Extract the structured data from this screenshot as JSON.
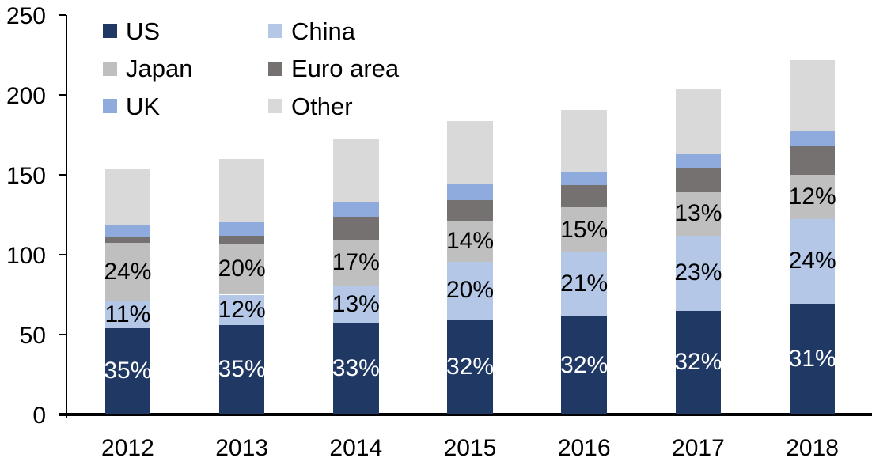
{
  "chart_data": {
    "type": "bar",
    "subtype": "stacked-column",
    "title": "",
    "xlabel": "",
    "ylabel": "",
    "categories": [
      "2012",
      "2013",
      "2014",
      "2015",
      "2016",
      "2017",
      "2018"
    ],
    "series": [
      {
        "name": "US",
        "color": "#1F3864",
        "values": [
          54,
          56,
          57.5,
          59.5,
          61.5,
          65,
          69.5
        ],
        "labels": [
          "35%",
          "35%",
          "33%",
          "32%",
          "32%",
          "32%",
          "31%"
        ],
        "label_color": "#FFFFFF"
      },
      {
        "name": "China",
        "color": "#B4C7E7",
        "values": [
          17,
          19,
          23,
          36,
          40,
          47,
          53
        ],
        "labels": [
          "11%",
          "12%",
          "13%",
          "20%",
          "21%",
          "23%",
          "24%"
        ],
        "label_color": "#000000"
      },
      {
        "name": "Japan",
        "color": "#BFBFBF",
        "values": [
          36.5,
          32,
          29,
          26,
          28,
          27,
          27.5
        ],
        "labels": [
          "24%",
          "20%",
          "17%",
          "14%",
          "15%",
          "13%",
          "12%"
        ],
        "label_color": "#000000"
      },
      {
        "name": "Euro area",
        "color": "#757171",
        "values": [
          3.5,
          5,
          14.5,
          12.5,
          14,
          15.5,
          18
        ],
        "labels": null,
        "label_color": null
      },
      {
        "name": "UK",
        "color": "#8FAADC",
        "values": [
          8,
          8.5,
          9,
          10,
          8.5,
          8.5,
          9.5
        ],
        "labels": null,
        "label_color": null
      },
      {
        "name": "Other",
        "color": "#D9D9D9",
        "values": [
          34.5,
          39.5,
          39.5,
          39.5,
          38.5,
          41,
          44.5
        ],
        "labels": null,
        "label_color": null
      }
    ],
    "totals_approx": [
      153.5,
      160,
      172.5,
      183.5,
      190.5,
      204,
      222
    ],
    "y_axis": {
      "min": 0,
      "max": 250,
      "tick_interval": 50,
      "tick_labels": [
        "0",
        "50",
        "100",
        "150",
        "200",
        "250"
      ]
    },
    "legend": {
      "position": "top-left-inside",
      "columns": [
        [
          "US",
          "Japan",
          "UK"
        ],
        [
          "China",
          "Euro area",
          "Other"
        ]
      ]
    },
    "gridlines": false,
    "text_color": "#000000",
    "background_color": "#FFFFFF"
  }
}
